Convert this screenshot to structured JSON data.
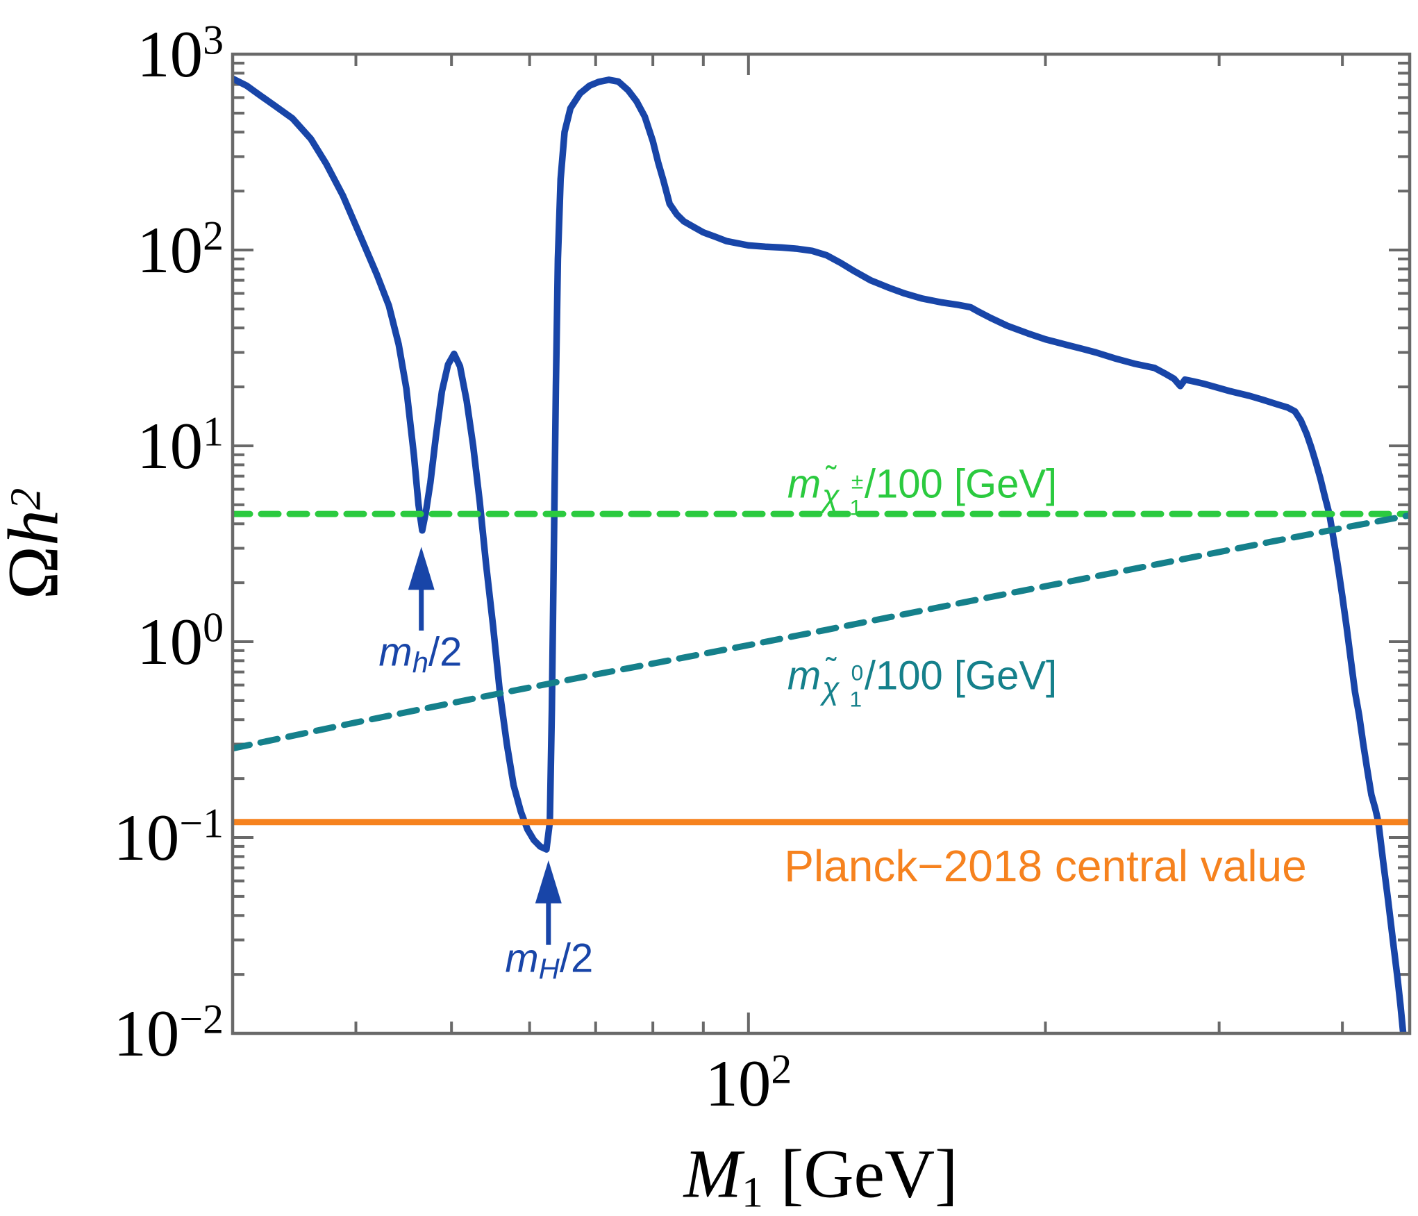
{
  "figure": {
    "background": "#ffffff",
    "frame_color": "#696969"
  },
  "labels": {
    "y_axis": {
      "omega": "Ω",
      "h": "h",
      "exp": "2"
    },
    "x_axis": {
      "M": "M",
      "sub": "1",
      "rest": " [GeV]"
    },
    "x_ticks": [
      {
        "base": "10",
        "exp": "2",
        "value": 100
      }
    ],
    "y_ticks": [
      {
        "base": "10",
        "exp": "3",
        "value": 1000
      },
      {
        "base": "10",
        "exp": "2",
        "value": 100
      },
      {
        "base": "10",
        "exp": "1",
        "value": 10
      },
      {
        "base": "10",
        "exp": "0",
        "value": 1
      },
      {
        "base": "10",
        "exp": "−1",
        "value": 0.1
      },
      {
        "base": "10",
        "exp": "−2",
        "value": 0.01
      }
    ],
    "chargino": {
      "m": "m",
      "chi": "χ",
      "tilde": "˜",
      "sup": "±",
      "sub": "1",
      "rest": "/100 [GeV]"
    },
    "neutralino": {
      "m": "m",
      "chi": "χ",
      "tilde": "˜",
      "sup": "0",
      "sub": "1",
      "rest": "/100 [GeV]"
    },
    "planck": "Planck−2018 central value",
    "mh2": {
      "m": "m",
      "sub": "h",
      "rest": "/2"
    },
    "mH2": {
      "m": "m",
      "sub": "H",
      "rest": "/2"
    }
  },
  "chart_data": {
    "type": "line",
    "title": "",
    "xlabel": "M1 [GeV]",
    "ylabel": "Omega h^2",
    "xscale": "log",
    "yscale": "log",
    "xlim": [
      30,
      468
    ],
    "ylim": [
      0.01,
      1000
    ],
    "grid": false,
    "x_major_ticks": [
      100
    ],
    "x_minor_ticks": [
      40,
      50,
      60,
      70,
      80,
      90,
      200,
      300,
      400
    ],
    "y_major_ticks": [
      1000,
      100,
      10,
      1,
      0.1,
      0.01
    ],
    "series": [
      {
        "name": "relic-density",
        "color": "#1845A8",
        "style": "solid",
        "width": 9.5,
        "points": [
          [
            30,
            750
          ],
          [
            31,
            690
          ],
          [
            32,
            615
          ],
          [
            33.2,
            540
          ],
          [
            34.5,
            470
          ],
          [
            36,
            370
          ],
          [
            37.3,
            277
          ],
          [
            38.8,
            190
          ],
          [
            40.5,
            115
          ],
          [
            42,
            75
          ],
          [
            43.2,
            52
          ],
          [
            44.2,
            33
          ],
          [
            45,
            19.6
          ],
          [
            45.8,
            9
          ],
          [
            46.3,
            5
          ],
          [
            46.7,
            3.7
          ],
          [
            47.1,
            4.6
          ],
          [
            47.6,
            6.5
          ],
          [
            48.2,
            11
          ],
          [
            48.9,
            19
          ],
          [
            49.6,
            26
          ],
          [
            50.3,
            29.5
          ],
          [
            51,
            25.5
          ],
          [
            51.8,
            17
          ],
          [
            52.6,
            10
          ],
          [
            53.4,
            5.2
          ],
          [
            54.2,
            2.5
          ],
          [
            55.1,
            1.2
          ],
          [
            56,
            0.54
          ],
          [
            56.9,
            0.3
          ],
          [
            57.8,
            0.185
          ],
          [
            58.8,
            0.135
          ],
          [
            59.7,
            0.11
          ],
          [
            60.6,
            0.097
          ],
          [
            61.5,
            0.09
          ],
          [
            62.4,
            0.087
          ],
          [
            62.9,
            0.12
          ],
          [
            63.2,
            0.45
          ],
          [
            63.5,
            3
          ],
          [
            63.8,
            20
          ],
          [
            64.1,
            90
          ],
          [
            64.5,
            230
          ],
          [
            65.1,
            400
          ],
          [
            66,
            530
          ],
          [
            67.5,
            630
          ],
          [
            69,
            690
          ],
          [
            70.5,
            722
          ],
          [
            72.2,
            740
          ],
          [
            73.8,
            725
          ],
          [
            75.5,
            655
          ],
          [
            77,
            575
          ],
          [
            78.5,
            480
          ],
          [
            80,
            360
          ],
          [
            81,
            280
          ],
          [
            82,
            226
          ],
          [
            83.2,
            172
          ],
          [
            84.6,
            152
          ],
          [
            86,
            140
          ],
          [
            88,
            131
          ],
          [
            90,
            123
          ],
          [
            92.5,
            117
          ],
          [
            95,
            111
          ],
          [
            100,
            105.5
          ],
          [
            104,
            104
          ],
          [
            108,
            103
          ],
          [
            112,
            101.5
          ],
          [
            116,
            99
          ],
          [
            120,
            94
          ],
          [
            124,
            86
          ],
          [
            128,
            78
          ],
          [
            133,
            70
          ],
          [
            139,
            64
          ],
          [
            144,
            60
          ],
          [
            150,
            56.5
          ],
          [
            157,
            54
          ],
          [
            163,
            52.5
          ],
          [
            168,
            51
          ],
          [
            171,
            48.5
          ],
          [
            176,
            45
          ],
          [
            183,
            41
          ],
          [
            192,
            37.5
          ],
          [
            200,
            35
          ],
          [
            210,
            32.8
          ],
          [
            218,
            31.3
          ],
          [
            225,
            30
          ],
          [
            235,
            28
          ],
          [
            246,
            26.3
          ],
          [
            258,
            25
          ],
          [
            264,
            23.5
          ],
          [
            270,
            22
          ],
          [
            274,
            20.2
          ],
          [
            277,
            21.8
          ],
          [
            283,
            21.3
          ],
          [
            290,
            20.7
          ],
          [
            297,
            20
          ],
          [
            308,
            19
          ],
          [
            322,
            18
          ],
          [
            332,
            17.2
          ],
          [
            342,
            16.4
          ],
          [
            352,
            15.7
          ],
          [
            358,
            15
          ],
          [
            363,
            13.5
          ],
          [
            368,
            11.5
          ],
          [
            372,
            9.8
          ],
          [
            376,
            8.2
          ],
          [
            380,
            6.8
          ],
          [
            384,
            5.5
          ],
          [
            388,
            4.5
          ],
          [
            392,
            3.3
          ],
          [
            396,
            2.4
          ],
          [
            400,
            1.7
          ],
          [
            404,
            1.18
          ],
          [
            408,
            0.8
          ],
          [
            412,
            0.55
          ],
          [
            416,
            0.42
          ],
          [
            420,
            0.3
          ],
          [
            424,
            0.22
          ],
          [
            428,
            0.165
          ],
          [
            432,
            0.14
          ],
          [
            435,
            0.12
          ],
          [
            440,
            0.075
          ],
          [
            445,
            0.048
          ],
          [
            450,
            0.03
          ],
          [
            455,
            0.019
          ],
          [
            458,
            0.014
          ],
          [
            461,
            0.01
          ]
        ]
      },
      {
        "name": "chargino-mass-over-100",
        "color": "#2BCA3F",
        "style": "dashed",
        "width": 9,
        "points": [
          [
            30,
            4.49
          ],
          [
            468,
            4.49
          ]
        ]
      },
      {
        "name": "neutralino-mass-over-100",
        "color": "#15808B",
        "style": "dashed",
        "width": 9,
        "points": [
          [
            30,
            0.285
          ],
          [
            40,
            0.387
          ],
          [
            55,
            0.535
          ],
          [
            70,
            0.68
          ],
          [
            85,
            0.82
          ],
          [
            100,
            0.96
          ],
          [
            120,
            1.15
          ],
          [
            150,
            1.44
          ],
          [
            180,
            1.73
          ],
          [
            220,
            2.11
          ],
          [
            260,
            2.49
          ],
          [
            300,
            2.87
          ],
          [
            340,
            3.25
          ],
          [
            380,
            3.62
          ],
          [
            410,
            3.9
          ],
          [
            435,
            4.12
          ],
          [
            455,
            4.3
          ],
          [
            468,
            4.42
          ]
        ]
      },
      {
        "name": "planck-2018-central-value",
        "color": "#F6821E",
        "style": "solid",
        "width": 9,
        "points": [
          [
            30,
            0.12
          ],
          [
            468,
            0.12
          ]
        ]
      }
    ],
    "annotations": {
      "chargino_label": {
        "x": 150,
        "y": 6.4
      },
      "neutralino_label": {
        "x": 150,
        "y": 0.67
      },
      "planck_label": {
        "x": 200,
        "y": 0.0715
      },
      "mh2_label": {
        "x": 46.5,
        "y": 0.86
      },
      "mH2_label": {
        "x": 62.8,
        "y": 0.0236
      },
      "arrows": [
        {
          "name": "mh2-arrow",
          "x": 46.6,
          "tail_y": 1.14,
          "tip_y": 3.05,
          "color": "#1845A8"
        },
        {
          "name": "mH2-arrow",
          "x": 62.7,
          "tail_y": 0.0283,
          "tip_y": 0.0765,
          "color": "#1845A8"
        }
      ]
    }
  }
}
